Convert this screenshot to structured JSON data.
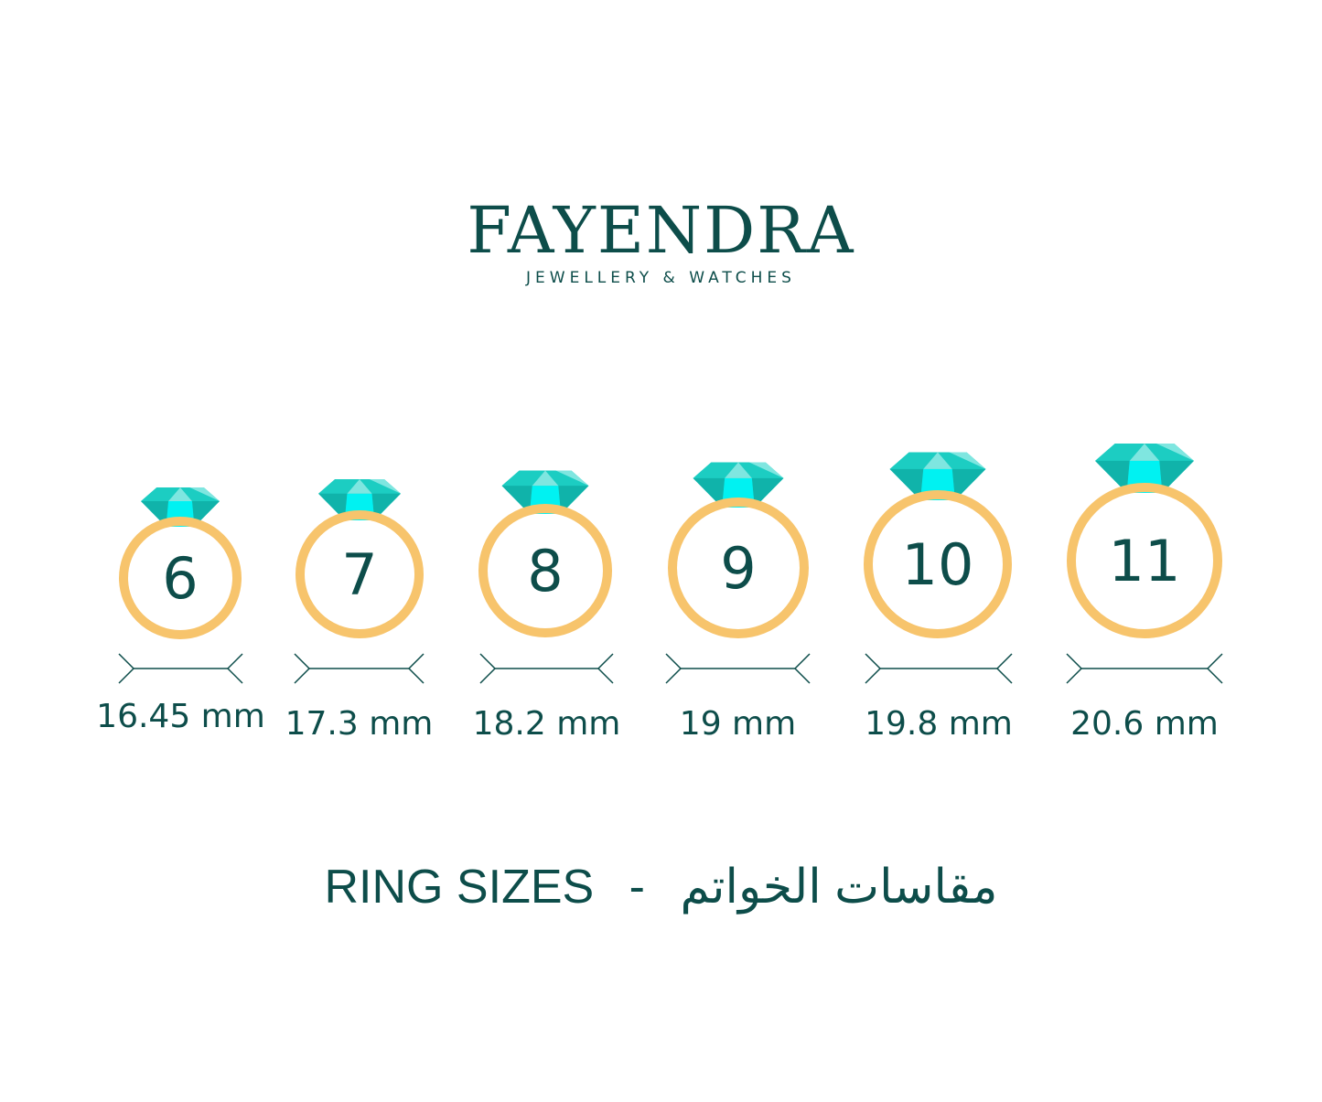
{
  "brand": {
    "name": "FAYENDRA",
    "tagline": "JEWELLERY & WATCHES"
  },
  "colors": {
    "text": "#0d4d4a",
    "ring": "#f7c46c",
    "gem_main": "#1ccdc2",
    "gem_dark": "#10b3aa",
    "gem_light": "#7fe6e0",
    "gem_center": "#00f2f2"
  },
  "rings": [
    {
      "size": "6",
      "diameter": "16.45 mm"
    },
    {
      "size": "7",
      "diameter": "17.3 mm"
    },
    {
      "size": "8",
      "diameter": "18.2 mm"
    },
    {
      "size": "9",
      "diameter": "19 mm"
    },
    {
      "size": "10",
      "diameter": "19.8 mm"
    },
    {
      "size": "11",
      "diameter": "20.6 mm"
    }
  ],
  "footer": {
    "title_en": "RING SIZES",
    "separator": "-",
    "title_ar": "مقاسات الخواتم"
  }
}
